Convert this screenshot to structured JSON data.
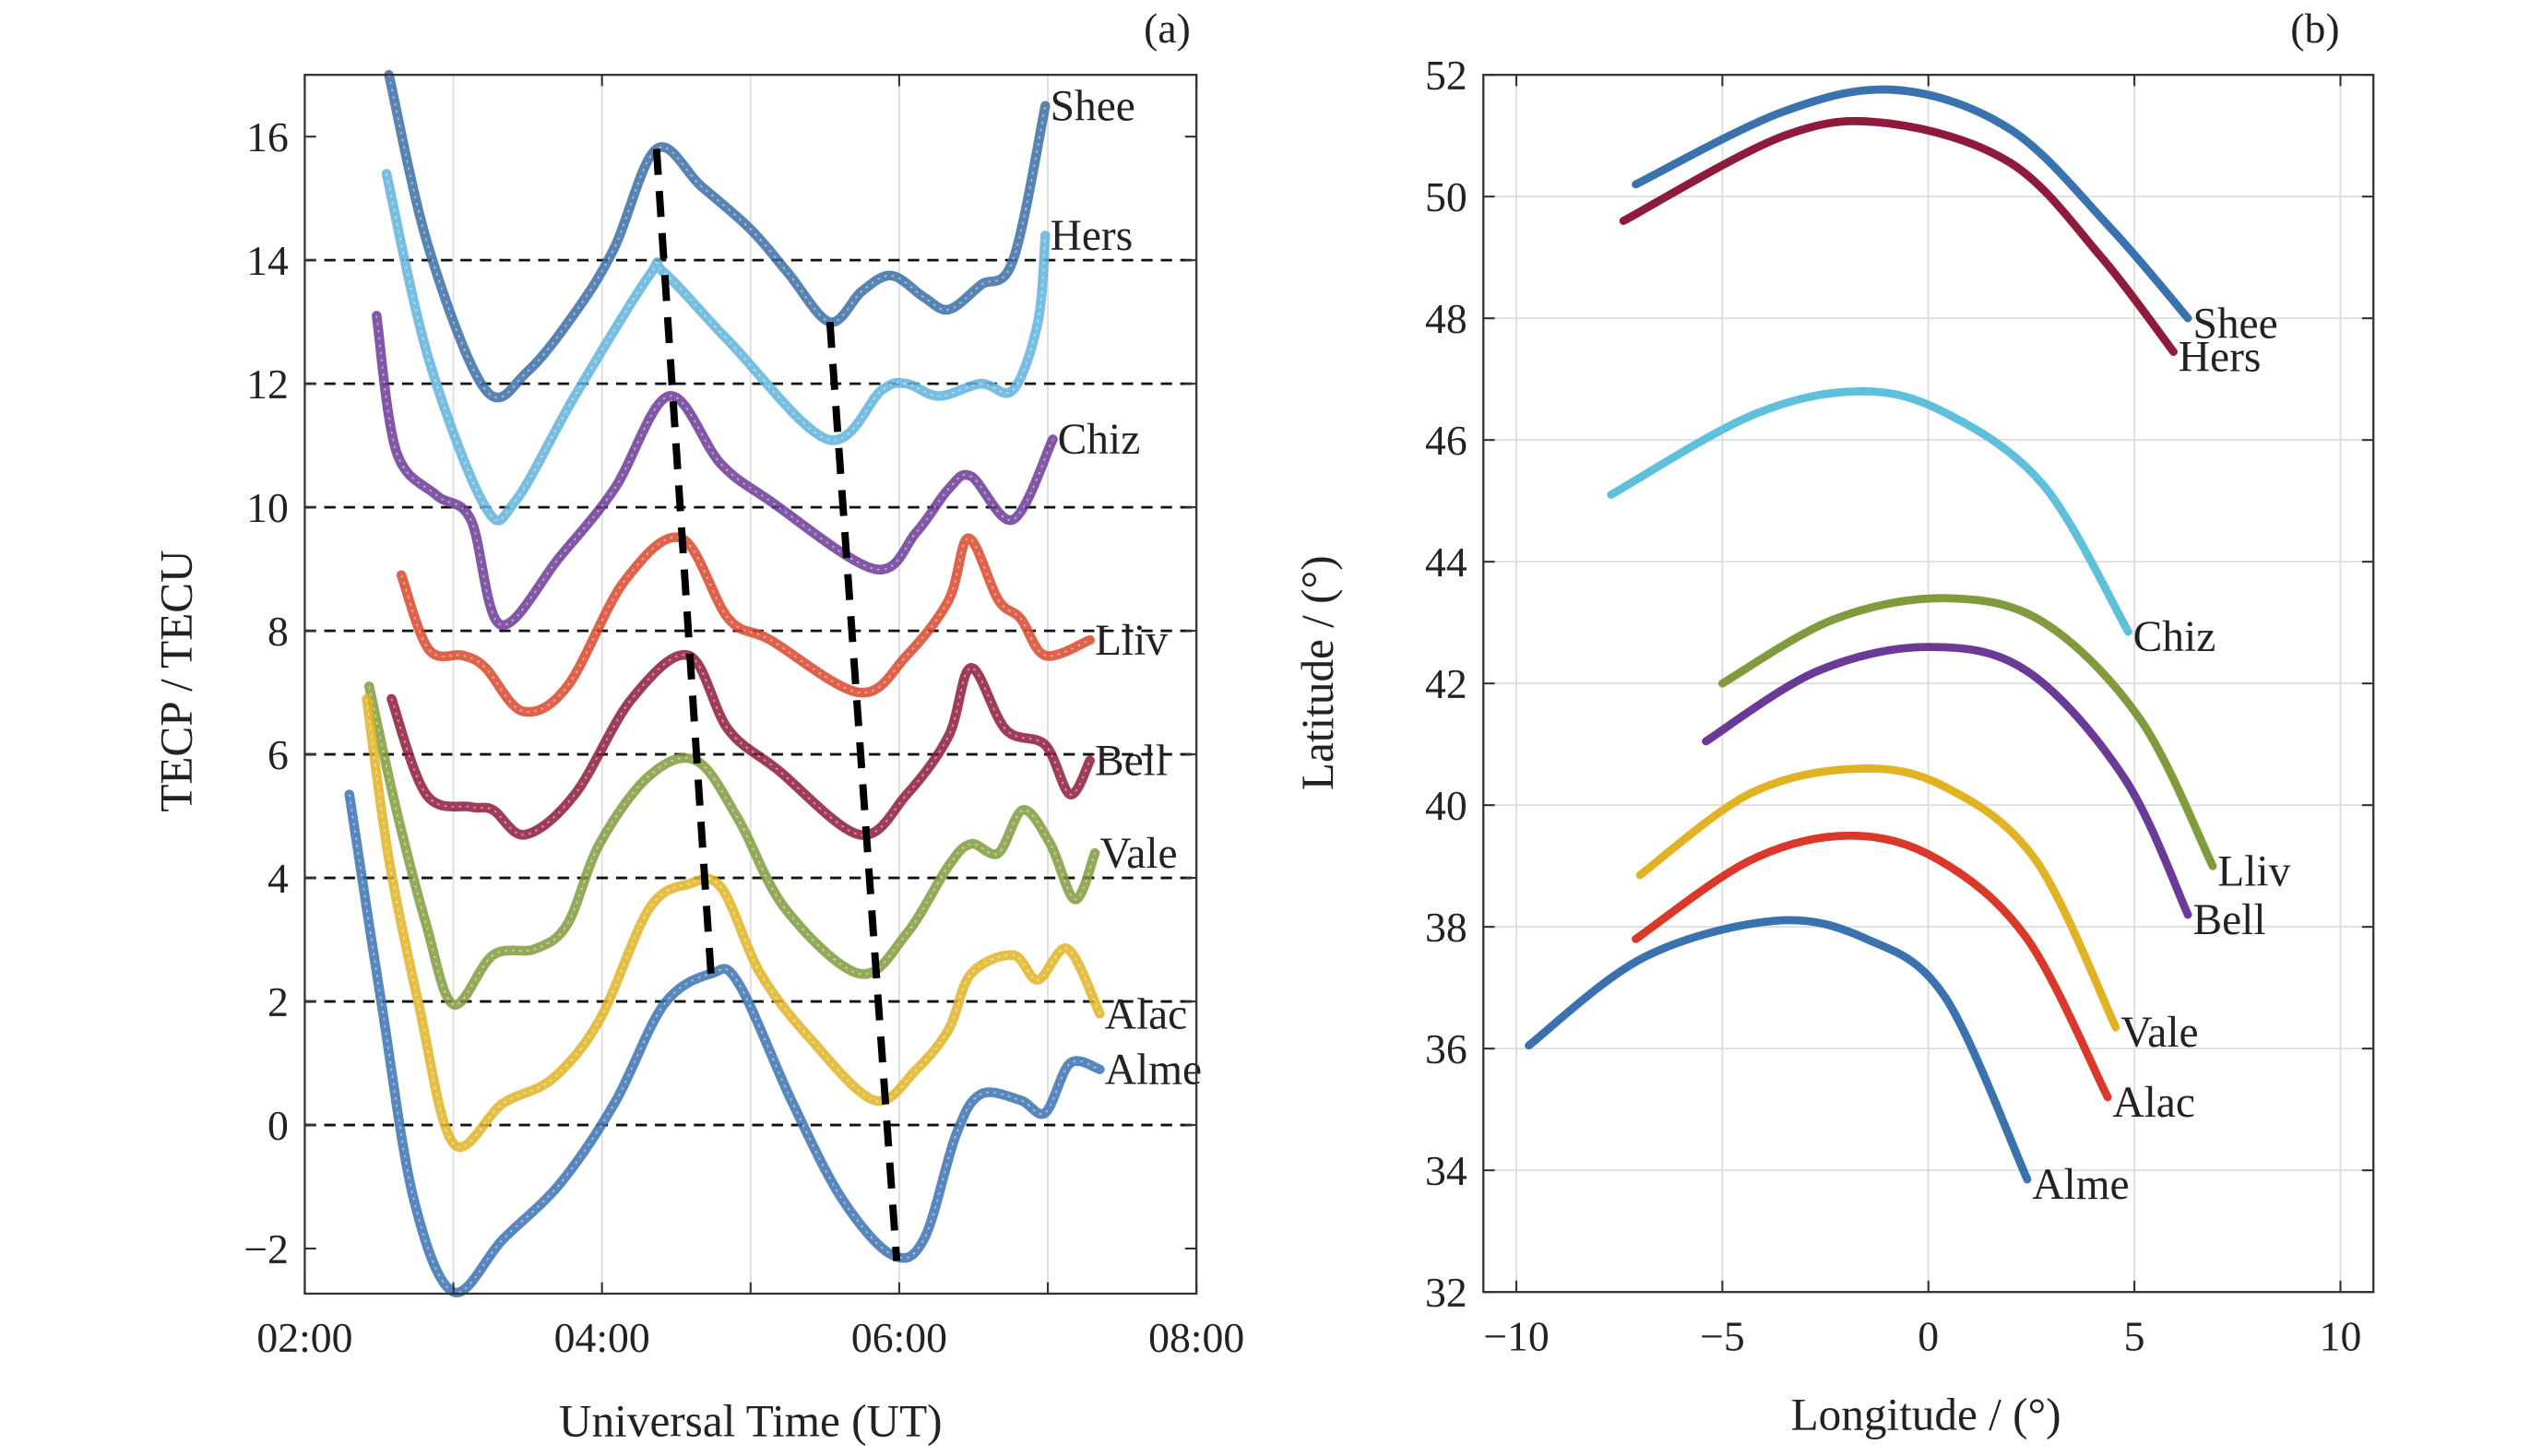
{
  "chart_data": [
    {
      "type": "line",
      "title": "(a)",
      "xlabel": "Universal Time (UT)",
      "ylabel": "TECP / TECU",
      "xlim": [
        "02:00",
        "08:00"
      ],
      "ylim": [
        -2.73,
        17.0
      ],
      "xticks": [
        "02:00",
        "04:00",
        "06:00",
        "08:00"
      ],
      "yticks": [
        -2,
        0,
        2,
        4,
        6,
        8,
        10,
        12,
        14,
        16
      ],
      "ytick_labels": [
        "−2",
        "0",
        "2",
        "4",
        "6",
        "8",
        "10",
        "12",
        "14",
        "16"
      ],
      "grid": "vertical solid gray; horizontal black dashed at 0–14",
      "dashed_ref_lines": [
        0,
        2,
        4,
        6,
        8,
        10,
        12,
        14
      ],
      "trend_lines": [
        {
          "name": "peak",
          "points": [
            [
              "04:22",
              15.8
            ],
            [
              "04:44",
              2.45
            ]
          ]
        },
        {
          "name": "trough",
          "points": [
            [
              "05:32",
              13.0
            ],
            [
              "05:59",
              -2.2
            ]
          ]
        }
      ],
      "series": [
        {
          "name": "Shee",
          "color": "#3a6ea5",
          "label_color": "#4a5a7a",
          "points": [
            [
              "02:34",
              17.0
            ],
            [
              "02:50",
              14.2
            ],
            [
              "03:13",
              11.9
            ],
            [
              "03:30",
              12.2
            ],
            [
              "03:50",
              13.2
            ],
            [
              "04:05",
              14.2
            ],
            [
              "04:22",
              15.8
            ],
            [
              "04:40",
              15.2
            ],
            [
              "05:00",
              14.5
            ],
            [
              "05:15",
              13.8
            ],
            [
              "05:32",
              13.0
            ],
            [
              "05:45",
              13.5
            ],
            [
              "05:57",
              13.75
            ],
            [
              "06:10",
              13.4
            ],
            [
              "06:20",
              13.2
            ],
            [
              "06:33",
              13.6
            ],
            [
              "06:46",
              14.0
            ],
            [
              "06:59",
              16.5
            ]
          ]
        },
        {
          "name": "Hers",
          "color": "#5fb3dc",
          "label_color": "#5fb3dc",
          "points": [
            [
              "02:33",
              15.4
            ],
            [
              "02:50",
              12.4
            ],
            [
              "03:13",
              10.0
            ],
            [
              "03:25",
              10.1
            ],
            [
              "03:49",
              11.8
            ],
            [
              "04:19",
              13.75
            ],
            [
              "04:25",
              13.8
            ],
            [
              "04:51",
              12.7
            ],
            [
              "05:31",
              11.1
            ],
            [
              "05:53",
              11.9
            ],
            [
              "06:03",
              12.0
            ],
            [
              "06:16",
              11.8
            ],
            [
              "06:33",
              12.0
            ],
            [
              "06:46",
              11.9
            ],
            [
              "06:56",
              13.0
            ],
            [
              "06:59",
              14.4
            ]
          ]
        },
        {
          "name": "Chiz",
          "color": "#6b3a96",
          "label_color": "#333344",
          "points": [
            [
              "02:29",
              13.1
            ],
            [
              "02:37",
              10.9
            ],
            [
              "02:53",
              10.2
            ],
            [
              "03:07",
              9.8
            ],
            [
              "03:19",
              8.1
            ],
            [
              "03:43",
              9.2
            ],
            [
              "04:05",
              10.3
            ],
            [
              "04:27",
              11.8
            ],
            [
              "04:48",
              10.7
            ],
            [
              "05:08",
              10.1
            ],
            [
              "05:50",
              9.0
            ],
            [
              "06:07",
              9.6
            ],
            [
              "06:20",
              10.3
            ],
            [
              "06:29",
              10.5
            ],
            [
              "06:46",
              9.8
            ],
            [
              "07:02",
              11.1
            ]
          ]
        },
        {
          "name": "Lliv",
          "color": "#d9482b",
          "label_color": "#c0303a",
          "points": [
            [
              "02:39",
              8.9
            ],
            [
              "02:50",
              7.7
            ],
            [
              "03:04",
              7.6
            ],
            [
              "03:13",
              7.4
            ],
            [
              "03:28",
              6.7
            ],
            [
              "03:46",
              7.1
            ],
            [
              "04:09",
              8.8
            ],
            [
              "04:32",
              9.5
            ],
            [
              "04:51",
              8.2
            ],
            [
              "05:08",
              7.85
            ],
            [
              "05:44",
              7.0
            ],
            [
              "06:03",
              7.6
            ],
            [
              "06:20",
              8.5
            ],
            [
              "06:28",
              9.5
            ],
            [
              "06:40",
              8.5
            ],
            [
              "06:49",
              8.2
            ],
            [
              "06:59",
              7.6
            ],
            [
              "07:17",
              7.85
            ]
          ]
        },
        {
          "name": "Bell",
          "color": "#8e1b3c",
          "label_color": "#8e1b3c",
          "points": [
            [
              "02:35",
              6.9
            ],
            [
              "02:49",
              5.35
            ],
            [
              "03:07",
              5.15
            ],
            [
              "03:16",
              5.1
            ],
            [
              "03:29",
              4.7
            ],
            [
              "03:49",
              5.35
            ],
            [
              "04:12",
              6.9
            ],
            [
              "04:35",
              7.6
            ],
            [
              "04:51",
              6.4
            ],
            [
              "05:11",
              5.75
            ],
            [
              "05:44",
              4.7
            ],
            [
              "06:03",
              5.35
            ],
            [
              "06:20",
              6.3
            ],
            [
              "06:29",
              7.4
            ],
            [
              "06:43",
              6.4
            ],
            [
              "06:59",
              6.15
            ],
            [
              "07:09",
              5.35
            ],
            [
              "07:17",
              5.9
            ]
          ]
        },
        {
          "name": "Vale",
          "color": "#7f9b3c",
          "label_color": "#7a8a3a",
          "points": [
            [
              "02:26",
              7.1
            ],
            [
              "02:37",
              5.1
            ],
            [
              "02:49",
              3.25
            ],
            [
              "03:00",
              1.95
            ],
            [
              "03:16",
              2.75
            ],
            [
              "03:33",
              2.85
            ],
            [
              "03:46",
              3.25
            ],
            [
              "03:59",
              4.55
            ],
            [
              "04:19",
              5.65
            ],
            [
              "04:38",
              5.9
            ],
            [
              "04:55",
              4.95
            ],
            [
              "05:14",
              3.5
            ],
            [
              "05:44",
              2.45
            ],
            [
              "06:03",
              3.1
            ],
            [
              "06:20",
              4.2
            ],
            [
              "06:29",
              4.55
            ],
            [
              "06:40",
              4.4
            ],
            [
              "06:50",
              5.1
            ],
            [
              "07:01",
              4.55
            ],
            [
              "07:11",
              3.65
            ],
            [
              "07:19",
              4.4
            ]
          ]
        },
        {
          "name": "Alac",
          "color": "#e1b324",
          "label_color": "#d8c840",
          "points": [
            [
              "02:25",
              6.9
            ],
            [
              "02:34",
              4.3
            ],
            [
              "02:46",
              1.95
            ],
            [
              "03:00",
              -0.3
            ],
            [
              "03:20",
              0.35
            ],
            [
              "03:40",
              0.75
            ],
            [
              "03:59",
              1.7
            ],
            [
              "04:19",
              3.5
            ],
            [
              "04:35",
              3.9
            ],
            [
              "04:48",
              3.85
            ],
            [
              "05:04",
              2.45
            ],
            [
              "05:24",
              1.4
            ],
            [
              "05:50",
              0.4
            ],
            [
              "06:07",
              0.9
            ],
            [
              "06:20",
              1.55
            ],
            [
              "06:29",
              2.45
            ],
            [
              "06:46",
              2.75
            ],
            [
              "06:56",
              2.35
            ],
            [
              "07:08",
              2.85
            ],
            [
              "07:21",
              1.8
            ]
          ]
        },
        {
          "name": "Alme",
          "color": "#3a72b0",
          "label_color": "#3a5a9a",
          "points": [
            [
              "02:18",
              5.35
            ],
            [
              "02:31",
              1.95
            ],
            [
              "02:44",
              -1.2
            ],
            [
              "03:00",
              -2.7
            ],
            [
              "03:20",
              -1.85
            ],
            [
              "03:43",
              -0.95
            ],
            [
              "04:05",
              0.35
            ],
            [
              "04:25",
              1.95
            ],
            [
              "04:44",
              2.45
            ],
            [
              "04:55",
              2.3
            ],
            [
              "05:17",
              0.35
            ],
            [
              "05:37",
              -1.2
            ],
            [
              "05:57",
              -2.1
            ],
            [
              "06:10",
              -1.85
            ],
            [
              "06:23",
              -0.15
            ],
            [
              "06:33",
              0.5
            ],
            [
              "06:49",
              0.4
            ],
            [
              "06:59",
              0.2
            ],
            [
              "07:09",
              1.0
            ],
            [
              "07:21",
              0.9
            ]
          ]
        }
      ]
    },
    {
      "type": "line",
      "title": "(b)",
      "xlabel": "Longitude / (°)",
      "ylabel": "Latitude / (°)",
      "xlim": [
        -10.8,
        10.8
      ],
      "ylim": [
        32,
        52
      ],
      "xticks": [
        -10,
        -5,
        0,
        5,
        10
      ],
      "xtick_labels": [
        "−10",
        "−5",
        "0",
        "5",
        "10"
      ],
      "yticks": [
        32,
        34,
        36,
        38,
        40,
        42,
        44,
        46,
        48,
        50,
        52
      ],
      "grid": "both, light gray",
      "series": [
        {
          "name": "Shee",
          "color": "#3a72b0",
          "label_color": "#3a5a9a",
          "points": [
            [
              -7.1,
              50.2
            ],
            [
              -3.5,
              51.4
            ],
            [
              -0.75,
              51.75
            ],
            [
              2.0,
              51.1
            ],
            [
              4.4,
              49.5
            ],
            [
              6.3,
              48.0
            ]
          ]
        },
        {
          "name": "Hers",
          "color": "#8e1b3c",
          "label_color": "#8e1b3c",
          "points": [
            [
              -7.4,
              49.6
            ],
            [
              -3.5,
              51.0
            ],
            [
              -0.95,
              51.2
            ],
            [
              2.0,
              50.55
            ],
            [
              4.2,
              49.0
            ],
            [
              5.95,
              47.45
            ]
          ]
        },
        {
          "name": "Chiz",
          "color": "#5fc0dc",
          "label_color": "#5fc0dc",
          "points": [
            [
              -7.7,
              45.1
            ],
            [
              -4.3,
              46.4
            ],
            [
              -1.7,
              46.8
            ],
            [
              0.4,
              46.45
            ],
            [
              2.8,
              45.25
            ],
            [
              4.85,
              42.85
            ]
          ]
        },
        {
          "name": "Lliv",
          "color": "#7f9b3c",
          "label_color": "#777777",
          "points": [
            [
              -5.0,
              42.0
            ],
            [
              -2.3,
              43.05
            ],
            [
              0.4,
              43.4
            ],
            [
              2.8,
              43.0
            ],
            [
              5.15,
              41.4
            ],
            [
              6.9,
              39.0
            ]
          ]
        },
        {
          "name": "Bell",
          "color": "#6b3a96",
          "label_color": "#333333",
          "points": [
            [
              -5.4,
              41.05
            ],
            [
              -2.7,
              42.2
            ],
            [
              0.0,
              42.6
            ],
            [
              2.4,
              42.2
            ],
            [
              4.75,
              40.45
            ],
            [
              6.3,
              38.2
            ]
          ]
        },
        {
          "name": "Vale",
          "color": "#e1b324",
          "label_color": "#d8c840",
          "points": [
            [
              -7.0,
              38.85
            ],
            [
              -4.3,
              40.2
            ],
            [
              -1.7,
              40.6
            ],
            [
              0.4,
              40.3
            ],
            [
              2.6,
              39.1
            ],
            [
              4.55,
              36.35
            ]
          ]
        },
        {
          "name": "Alac",
          "color": "#d9382b",
          "label_color": "#a0304a",
          "points": [
            [
              -7.1,
              37.8
            ],
            [
              -4.3,
              39.1
            ],
            [
              -1.9,
              39.5
            ],
            [
              0.25,
              39.1
            ],
            [
              2.4,
              37.8
            ],
            [
              4.35,
              35.2
            ]
          ]
        },
        {
          "name": "Alme",
          "color": "#3a72b0",
          "label_color": "#3a5a9a",
          "points": [
            [
              -9.7,
              36.05
            ],
            [
              -6.9,
              37.5
            ],
            [
              -3.7,
              38.1
            ],
            [
              -1.5,
              37.8
            ],
            [
              0.4,
              36.85
            ],
            [
              2.4,
              33.85
            ]
          ]
        }
      ]
    }
  ]
}
